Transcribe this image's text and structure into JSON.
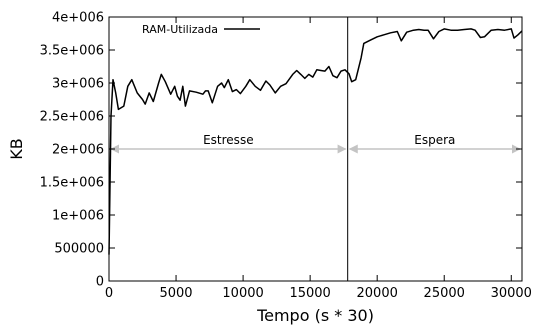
{
  "chart_data": {
    "type": "line",
    "xlabel": "Tempo (s * 30)",
    "ylabel": "KB",
    "xlim": [
      0,
      30800
    ],
    "ylim": [
      0,
      4000000
    ],
    "x_ticks": [
      {
        "value": 0,
        "label": "0"
      },
      {
        "value": 5000,
        "label": "5000"
      },
      {
        "value": 10000,
        "label": "10000"
      },
      {
        "value": 15000,
        "label": "15000"
      },
      {
        "value": 20000,
        "label": "20000"
      },
      {
        "value": 25000,
        "label": "25000"
      },
      {
        "value": 30000,
        "label": "30000"
      }
    ],
    "y_ticks": [
      {
        "value": 0,
        "label": "0"
      },
      {
        "value": 500000,
        "label": "500000"
      },
      {
        "value": 1000000,
        "label": "1e+006"
      },
      {
        "value": 1500000,
        "label": "1.5e+006"
      },
      {
        "value": 2000000,
        "label": "2e+006"
      },
      {
        "value": 2500000,
        "label": "2.5e+006"
      },
      {
        "value": 3000000,
        "label": "3e+006"
      },
      {
        "value": 3500000,
        "label": "3.5e+006"
      },
      {
        "value": 4000000,
        "label": "4e+006"
      }
    ],
    "legend": {
      "placement": "top-left",
      "label": "RAM-Utilizada"
    },
    "series": [
      {
        "name": "RAM-Utilizada",
        "color": "#000000",
        "points": [
          [
            0,
            400000
          ],
          [
            150,
            2500000
          ],
          [
            300,
            3050000
          ],
          [
            500,
            2850000
          ],
          [
            700,
            2600000
          ],
          [
            1100,
            2650000
          ],
          [
            1400,
            2950000
          ],
          [
            1700,
            3050000
          ],
          [
            2100,
            2850000
          ],
          [
            2500,
            2750000
          ],
          [
            2700,
            2680000
          ],
          [
            3000,
            2850000
          ],
          [
            3300,
            2720000
          ],
          [
            3700,
            3000000
          ],
          [
            3900,
            3130000
          ],
          [
            4200,
            3020000
          ],
          [
            4600,
            2830000
          ],
          [
            4900,
            2950000
          ],
          [
            5100,
            2800000
          ],
          [
            5300,
            2740000
          ],
          [
            5500,
            2950000
          ],
          [
            5700,
            2650000
          ],
          [
            6000,
            2880000
          ],
          [
            6500,
            2860000
          ],
          [
            7000,
            2830000
          ],
          [
            7200,
            2880000
          ],
          [
            7400,
            2880000
          ],
          [
            7700,
            2700000
          ],
          [
            8100,
            2950000
          ],
          [
            8400,
            3000000
          ],
          [
            8600,
            2930000
          ],
          [
            8900,
            3050000
          ],
          [
            9200,
            2870000
          ],
          [
            9500,
            2900000
          ],
          [
            9800,
            2840000
          ],
          [
            10200,
            2950000
          ],
          [
            10500,
            3050000
          ],
          [
            10900,
            2950000
          ],
          [
            11300,
            2890000
          ],
          [
            11700,
            3030000
          ],
          [
            12000,
            2970000
          ],
          [
            12400,
            2850000
          ],
          [
            12800,
            2950000
          ],
          [
            13200,
            2990000
          ],
          [
            13700,
            3130000
          ],
          [
            14000,
            3190000
          ],
          [
            14300,
            3130000
          ],
          [
            14600,
            3070000
          ],
          [
            14900,
            3130000
          ],
          [
            15200,
            3090000
          ],
          [
            15500,
            3200000
          ],
          [
            15800,
            3190000
          ],
          [
            16100,
            3180000
          ],
          [
            16400,
            3250000
          ],
          [
            16700,
            3110000
          ],
          [
            17000,
            3080000
          ],
          [
            17300,
            3180000
          ],
          [
            17600,
            3200000
          ],
          [
            17900,
            3140000
          ],
          [
            18100,
            3020000
          ],
          [
            18400,
            3050000
          ],
          [
            18800,
            3380000
          ],
          [
            19000,
            3600000
          ],
          [
            19500,
            3650000
          ],
          [
            20000,
            3700000
          ],
          [
            20500,
            3730000
          ],
          [
            21000,
            3760000
          ],
          [
            21500,
            3780000
          ],
          [
            21800,
            3640000
          ],
          [
            22200,
            3770000
          ],
          [
            22700,
            3800000
          ],
          [
            23100,
            3810000
          ],
          [
            23500,
            3800000
          ],
          [
            23800,
            3800000
          ],
          [
            24200,
            3670000
          ],
          [
            24600,
            3780000
          ],
          [
            25000,
            3820000
          ],
          [
            25500,
            3800000
          ],
          [
            26000,
            3800000
          ],
          [
            26500,
            3810000
          ],
          [
            27000,
            3820000
          ],
          [
            27300,
            3800000
          ],
          [
            27700,
            3690000
          ],
          [
            28000,
            3700000
          ],
          [
            28500,
            3800000
          ],
          [
            29000,
            3810000
          ],
          [
            29500,
            3800000
          ],
          [
            30000,
            3820000
          ],
          [
            30200,
            3680000
          ],
          [
            30500,
            3730000
          ],
          [
            30800,
            3790000
          ]
        ]
      }
    ],
    "separator_x": 17800,
    "annotations": [
      {
        "label": "Estresse",
        "x_start": 0,
        "x_end": 17800,
        "y": 2000000
      },
      {
        "label": "Espera",
        "x_start": 17800,
        "x_end": 30800,
        "y": 2000000
      }
    ],
    "colors": {
      "line": "#000000",
      "arrow": "#c4c4c4",
      "axis": "#000000"
    }
  }
}
